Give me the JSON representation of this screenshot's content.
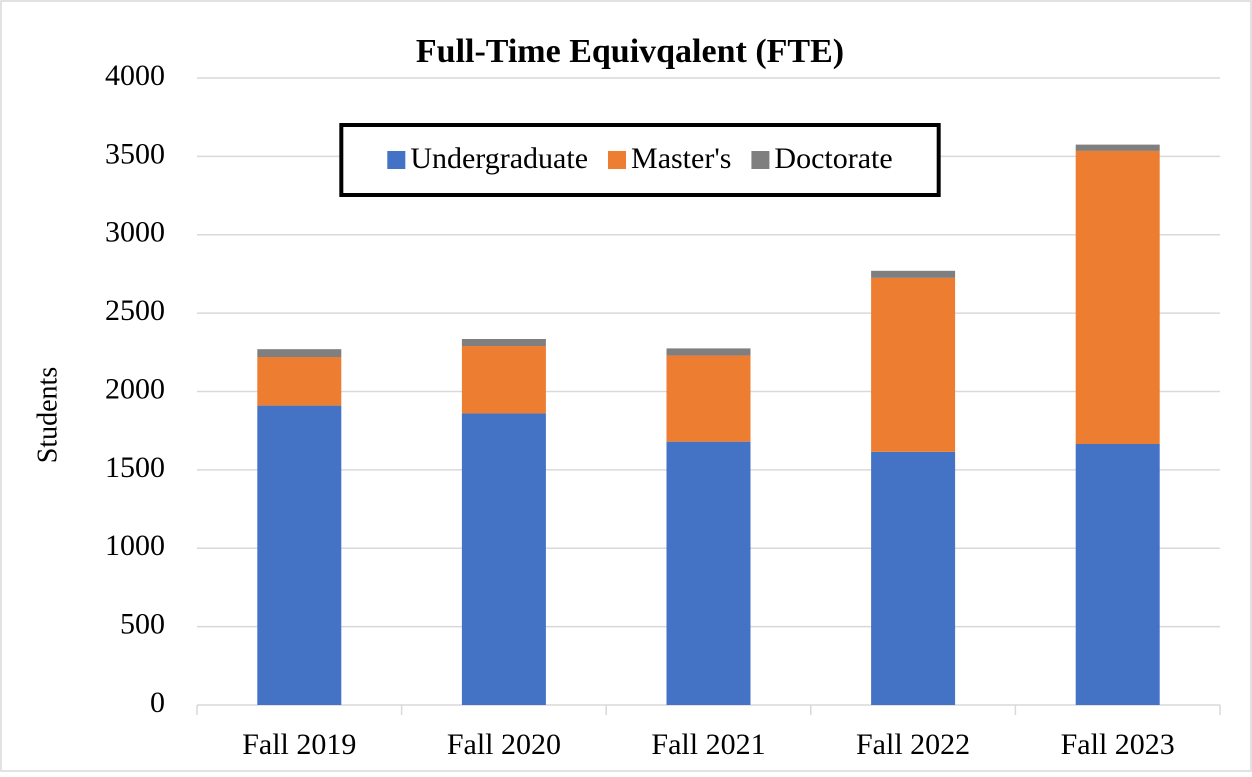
{
  "chart_data": {
    "type": "stacked_bar",
    "title": "Full-Time Equivqalent (FTE)",
    "y_label": "Students",
    "categories": [
      "Fall 2019",
      "Fall 2020",
      "Fall 2021",
      "Fall 2022",
      "Fall 2023"
    ],
    "series": [
      {
        "name": "Undergraduate",
        "color": "#4472c4",
        "values": [
          1910,
          1860,
          1680,
          1615,
          1665
        ]
      },
      {
        "name": "Master's",
        "color": "#ed7d31",
        "values": [
          310,
          430,
          550,
          1110,
          1870
        ]
      },
      {
        "name": "Doctorate",
        "color": "#7f7f7f",
        "values": [
          50,
          45,
          45,
          45,
          40
        ]
      }
    ],
    "ylim": [
      0,
      4000
    ],
    "yticks": [
      0,
      500,
      1000,
      1500,
      2000,
      2500,
      3000,
      3500,
      4000
    ],
    "grid": true,
    "legend": "top"
  }
}
